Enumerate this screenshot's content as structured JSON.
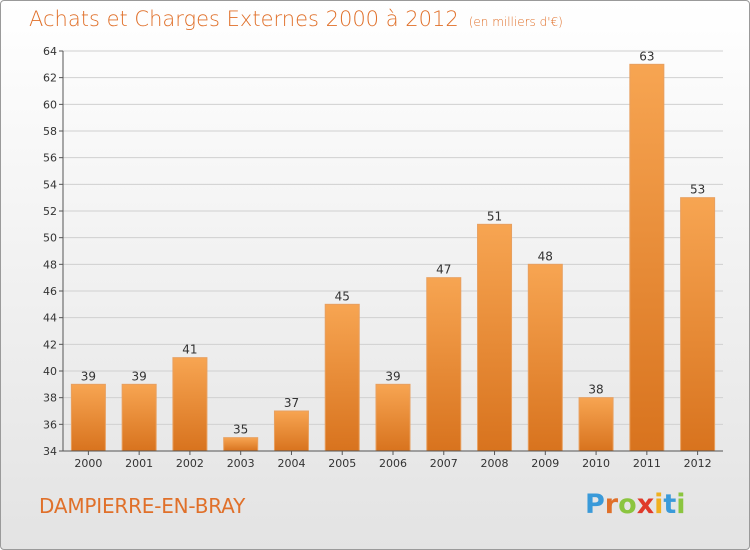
{
  "title": "Achats et Charges Externes 2000 à 2012",
  "subtitle": "(en milliers d'€)",
  "commune": "DAMPIERRE-EN-BRAY",
  "logo": {
    "letters": [
      "P",
      "r",
      "o",
      "x",
      "i",
      "t",
      "i"
    ],
    "colors": [
      "#3a9ad9",
      "#e0702a",
      "#8bc53f",
      "#e03a2a",
      "#f0b020",
      "#3a9ad9",
      "#8bc53f"
    ]
  },
  "chart_data": {
    "type": "bar",
    "categories": [
      "2000",
      "2001",
      "2002",
      "2003",
      "2004",
      "2005",
      "2006",
      "2007",
      "2008",
      "2009",
      "2010",
      "2011",
      "2012"
    ],
    "values": [
      39,
      39,
      41,
      35,
      37,
      45,
      39,
      47,
      51,
      48,
      38,
      63,
      53
    ],
    "ylim": [
      34,
      64
    ],
    "yticks": [
      34,
      36,
      38,
      40,
      42,
      44,
      46,
      48,
      50,
      52,
      54,
      56,
      58,
      60,
      62,
      64
    ],
    "grid": true,
    "bar_color": "#f0912f"
  }
}
